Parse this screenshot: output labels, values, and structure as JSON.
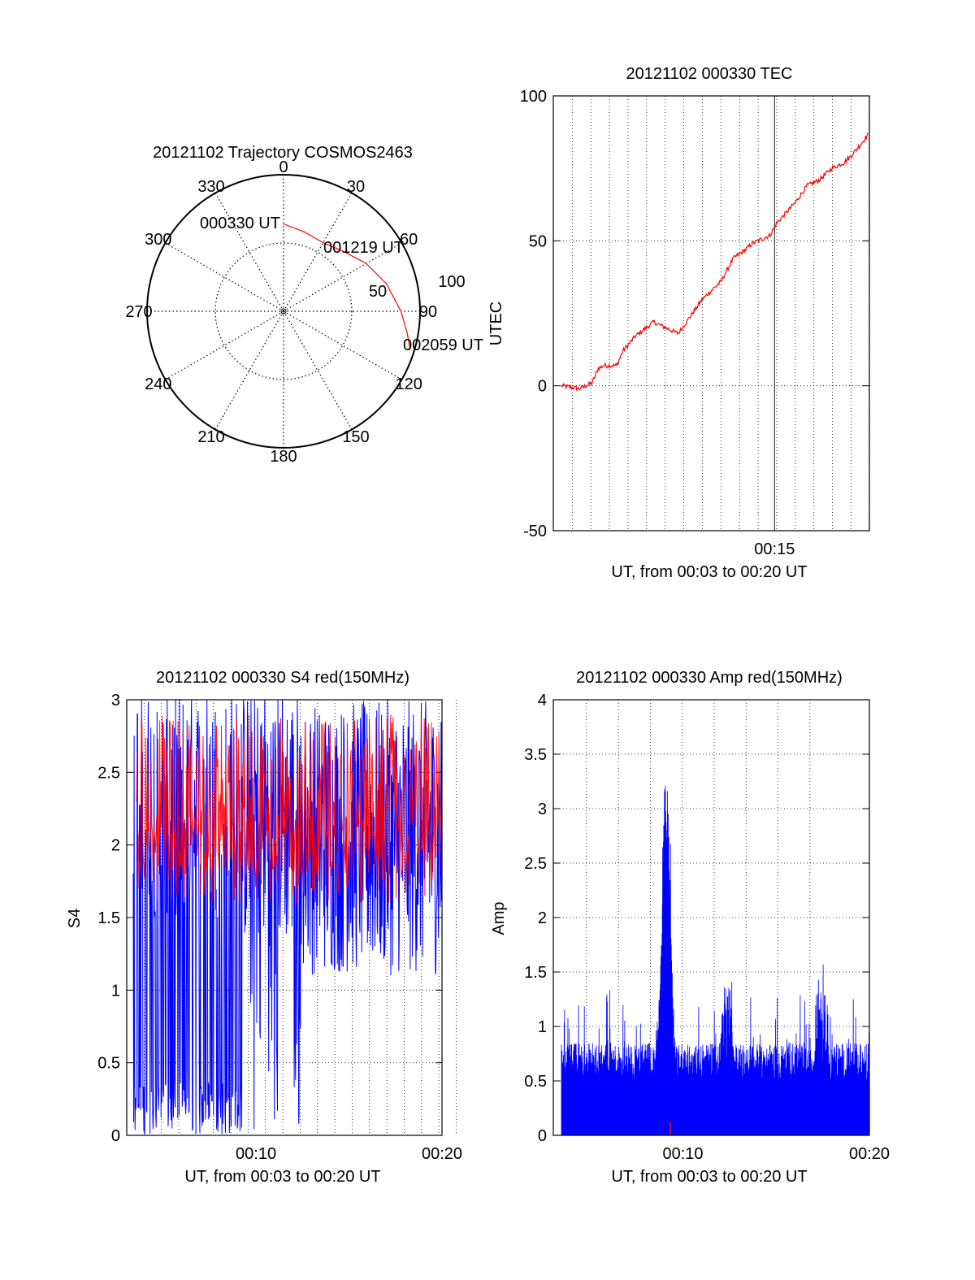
{
  "colors": {
    "red": "#ff0000",
    "blue": "#0000ff",
    "black": "#000000",
    "grid": "#000000"
  },
  "chart_data": [
    {
      "type": "polar",
      "title": "20121102 Trajectory COSMOS2463",
      "angle_labels": [
        "0",
        "30",
        "60",
        "90",
        "120",
        "150",
        "180",
        "210",
        "240",
        "270",
        "300",
        "330"
      ],
      "angles": [
        0,
        30,
        60,
        90,
        120,
        150,
        180,
        210,
        240,
        270,
        300,
        330
      ],
      "radius_max": 100,
      "ring_labels": [
        {
          "text": "50",
          "radius": 50
        },
        {
          "text": "100",
          "radius": 100
        }
      ],
      "trajectory": [
        {
          "az": 0,
          "r": 64
        },
        {
          "az": 15,
          "r": 60
        },
        {
          "az": 30,
          "r": 58
        },
        {
          "az": 45,
          "r": 62
        },
        {
          "az": 60,
          "r": 70
        },
        {
          "az": 75,
          "r": 78
        },
        {
          "az": 90,
          "r": 86
        },
        {
          "az": 100,
          "r": 92
        },
        {
          "az": 107,
          "r": 97
        }
      ],
      "annotations": [
        {
          "text": "000330 UT",
          "az": 0,
          "r": 64
        },
        {
          "text": "001219 UT",
          "az": 45,
          "r": 62
        },
        {
          "text": "002059 UT",
          "az": 107,
          "r": 97
        }
      ]
    },
    {
      "type": "line",
      "title": "20121102 000330 TEC",
      "xlabel": "UT, from 00:03 to 00:20 UT",
      "ylabel": "UTEC",
      "ylim": [
        -50,
        100
      ],
      "yticks": [
        "-50",
        "0",
        "50",
        "100"
      ],
      "xtick_labels": [
        "00:15"
      ],
      "series": [
        {
          "color": "#ff0000",
          "x": [
            0,
            6,
            10,
            12,
            14,
            18,
            20,
            24,
            30,
            38,
            42,
            46,
            52,
            54,
            56,
            60,
            62,
            68,
            70,
            76,
            80,
            84,
            88,
            92,
            94,
            98,
            100
          ],
          "y": [
            0,
            -1,
            1,
            6,
            7,
            7,
            12,
            17,
            22,
            18,
            24,
            30,
            36,
            40,
            44,
            47,
            49,
            52,
            56,
            63,
            69,
            71,
            75,
            77,
            79,
            84,
            87
          ]
        }
      ]
    },
    {
      "type": "line",
      "title": "20121102 000330 S4 red(150MHz)",
      "xlabel": "UT, from 00:03 to 00:20 UT",
      "ylabel": "S4",
      "ylim": [
        0,
        3
      ],
      "yticks": [
        "0",
        "0.5",
        "1",
        "1.5",
        "2",
        "2.5",
        "3"
      ],
      "xtick_labels": [
        "00:10",
        "00:20"
      ],
      "series": [
        {
          "color": "#0000ff",
          "lo": 0.0,
          "hi": 3.0,
          "note_range": "dense oscillation 0–3"
        },
        {
          "color": "#ff0000",
          "lo": 1.5,
          "hi": 2.9
        }
      ]
    },
    {
      "type": "line",
      "title": "20121102 000330 Amp red(150MHz)",
      "xlabel": "UT, from 00:03 to 00:20 UT",
      "ylabel": "Amp",
      "ylim": [
        0,
        4
      ],
      "yticks": [
        "0",
        "0.5",
        "1",
        "1.5",
        "2",
        "2.5",
        "3",
        "3.5",
        "4"
      ],
      "xtick_labels": [
        "00:10",
        "00:20"
      ],
      "series": [
        {
          "color": "#0000ff",
          "baseline": 0.5,
          "peak_x_frac": 0.37,
          "peak_value": 3.4
        }
      ]
    }
  ]
}
